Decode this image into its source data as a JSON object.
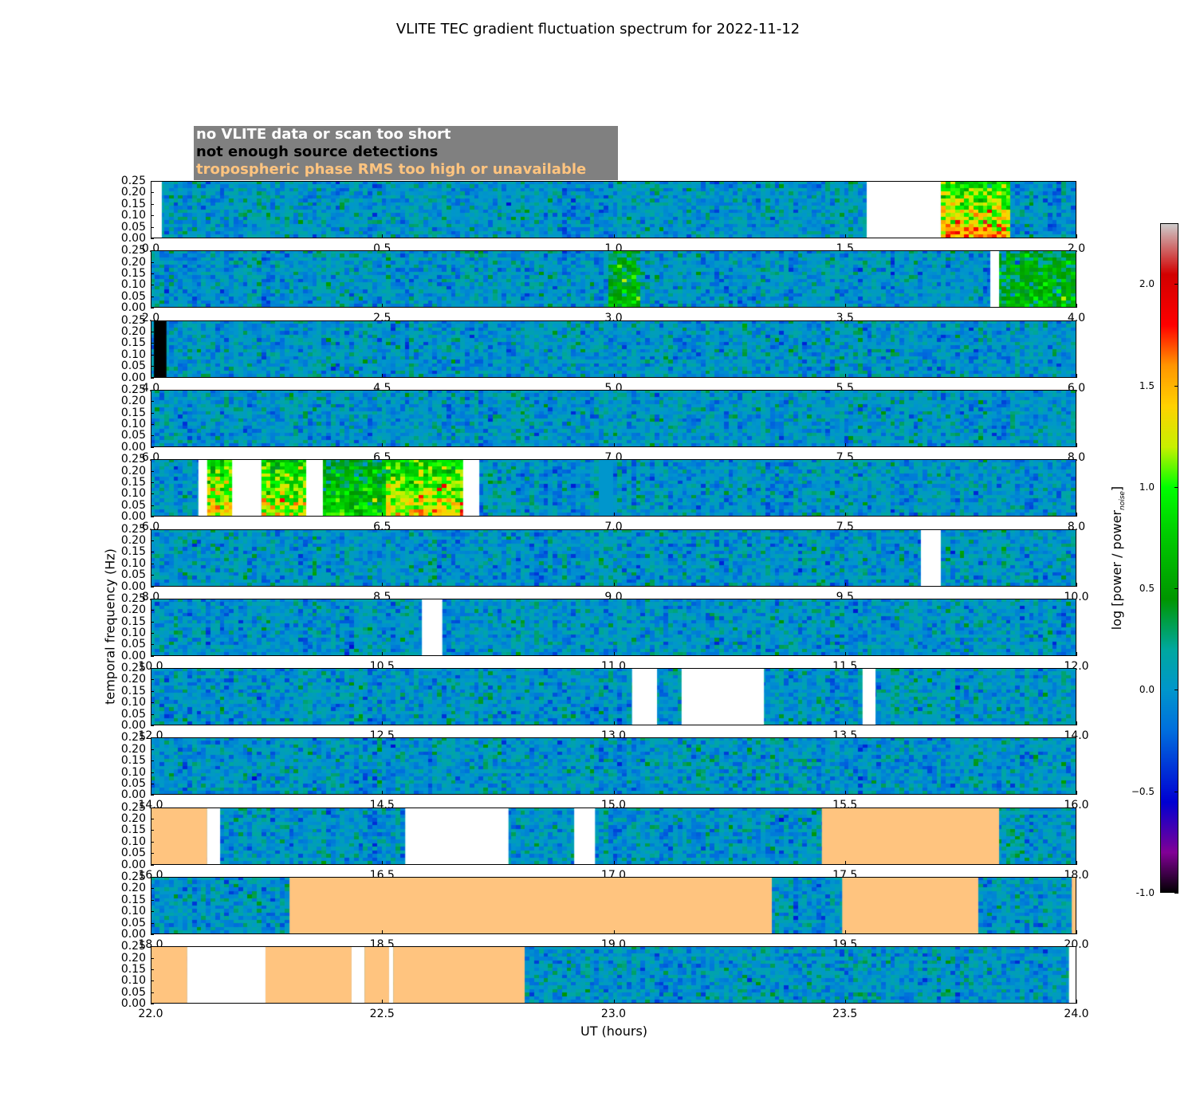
{
  "chart_data": {
    "type": "heatmap",
    "title": "VLITE TEC gradient fluctuation spectrum for 2022-11-12",
    "xlabel": "UT (hours)",
    "ylabel": "temporal frequency (Hz)",
    "colorbar": {
      "label": "log [power / power",
      "label_sub": "noise",
      "label_end": "]",
      "range": [
        -1.0,
        2.3
      ],
      "ticks": [
        "-1.0",
        "−0.5",
        "0.0",
        "0.5",
        "1.0",
        "1.5",
        "2.0"
      ],
      "tick_values": [
        -1.0,
        -0.5,
        0.0,
        0.5,
        1.0,
        1.5,
        2.0
      ],
      "colormap": "nipy_spectral"
    },
    "ylim": [
      0.0,
      0.25
    ],
    "y_ticks": [
      "0.00",
      "0.05",
      "0.10",
      "0.15",
      "0.20",
      "0.25"
    ],
    "legend": {
      "no_data": {
        "text": "no VLITE data or scan too short",
        "color": "#ffffff"
      },
      "few_detections": {
        "text": "not enough source detections",
        "color": "#000000"
      },
      "tropo": {
        "text": "tropospheric phase RMS too high or unavailable",
        "color": "#ffc47f"
      },
      "background": "#808080"
    },
    "panels": [
      {
        "xlim": [
          0,
          2
        ],
        "x_ticks": [
          "0.0",
          "0.5",
          "1.0",
          "1.5",
          "2.0"
        ],
        "segments": [
          {
            "type": "no_data",
            "x": [
              0.0,
              0.024
            ]
          },
          {
            "type": "no_data",
            "x": [
              1.547,
              1.707
            ]
          },
          {
            "type": "enhanced",
            "x": [
              1.707,
              1.859
            ],
            "level": 1.2
          }
        ]
      },
      {
        "xlim": [
          2,
          4
        ],
        "x_ticks": [
          "2.0",
          "2.5",
          "3.0",
          "3.5",
          "4.0"
        ],
        "segments": [
          {
            "type": "enhanced",
            "x": [
              2.99,
              3.06
            ],
            "level": 0.5
          },
          {
            "type": "no_data",
            "x": [
              3.814,
              3.833
            ]
          },
          {
            "type": "enhanced",
            "x": [
              3.833,
              4.0
            ],
            "level": 0.5
          }
        ]
      },
      {
        "xlim": [
          4,
          6
        ],
        "x_ticks": [
          "4.0",
          "4.5",
          "5.0",
          "5.5",
          "6.0"
        ],
        "segments": [
          {
            "type": "few_detections",
            "x": [
              4.007,
              4.034
            ]
          }
        ]
      },
      {
        "xlim": [
          6,
          8
        ],
        "x_ticks": [
          "6.0",
          "6.5",
          "7.0",
          "7.5",
          "8.0"
        ],
        "segments": []
      },
      {
        "xlim": [
          6,
          8
        ],
        "x_ticks": [
          "6.0",
          "6.5",
          "7.0",
          "7.5",
          "8.0"
        ],
        "segments": [
          {
            "type": "no_data",
            "x": [
              6.103,
              6.122
            ]
          },
          {
            "type": "enhanced",
            "x": [
              6.122,
              6.176
            ],
            "level": 1.2
          },
          {
            "type": "no_data",
            "x": [
              6.176,
              6.239
            ]
          },
          {
            "type": "enhanced",
            "x": [
              6.239,
              6.336
            ],
            "level": 1.0
          },
          {
            "type": "no_data",
            "x": [
              6.336,
              6.372
            ]
          },
          {
            "type": "enhanced",
            "x": [
              6.372,
              6.506
            ],
            "level": 0.6
          },
          {
            "type": "enhanced",
            "x": [
              6.506,
              6.675
            ],
            "level": 1.1
          },
          {
            "type": "no_data",
            "x": [
              6.675,
              6.71
            ]
          },
          {
            "type": "flat",
            "x": [
              6.966,
              7.004
            ],
            "level": 0.0
          }
        ]
      },
      {
        "xlim": [
          8,
          10
        ],
        "x_ticks": [
          "8.0",
          "8.5",
          "9.0",
          "9.5",
          "10.0"
        ],
        "segments": [
          {
            "type": "no_data",
            "x": [
              9.664,
              9.707
            ]
          }
        ]
      },
      {
        "xlim": [
          10,
          12
        ],
        "x_ticks": [
          "10.0",
          "10.5",
          "11.0",
          "11.5",
          "12.0"
        ],
        "segments": [
          {
            "type": "no_data",
            "x": [
              10.586,
              10.63
            ]
          }
        ]
      },
      {
        "xlim": [
          12,
          14
        ],
        "x_ticks": [
          "12.0",
          "12.5",
          "13.0",
          "13.5",
          "14.0"
        ],
        "segments": [
          {
            "type": "no_data",
            "x": [
              13.04,
              13.094
            ]
          },
          {
            "type": "no_data",
            "x": [
              13.147,
              13.325
            ]
          },
          {
            "type": "no_data",
            "x": [
              13.538,
              13.566
            ]
          }
        ]
      },
      {
        "xlim": [
          14,
          16
        ],
        "x_ticks": [
          "14.0",
          "14.5",
          "15.0",
          "15.5",
          "16.0"
        ],
        "segments": []
      },
      {
        "xlim": [
          16,
          18
        ],
        "x_ticks": [
          "16.0",
          "16.5",
          "17.0",
          "17.5",
          "18.0"
        ],
        "segments": [
          {
            "type": "tropo",
            "x": [
              16.0,
              16.122
            ]
          },
          {
            "type": "no_data",
            "x": [
              16.122,
              16.15
            ]
          },
          {
            "type": "no_data",
            "x": [
              16.55,
              16.773
            ]
          },
          {
            "type": "no_data",
            "x": [
              16.915,
              16.96
            ]
          },
          {
            "type": "tropo",
            "x": [
              17.45,
              17.833
            ]
          }
        ]
      },
      {
        "xlim": [
          18,
          20
        ],
        "x_ticks": [
          "18.0",
          "18.5",
          "19.0",
          "19.5",
          "20.0"
        ],
        "segments": [
          {
            "type": "tropo",
            "x": [
              18.3,
              19.342
            ]
          },
          {
            "type": "tropo",
            "x": [
              19.494,
              19.788
            ]
          },
          {
            "type": "tropo",
            "x": [
              19.99,
              20.0
            ]
          }
        ]
      },
      {
        "xlim": [
          22,
          24
        ],
        "x_ticks": [
          "22.0",
          "22.5",
          "23.0",
          "23.5",
          "24.0"
        ],
        "segments": [
          {
            "type": "tropo",
            "x": [
              22.0,
              22.079
            ]
          },
          {
            "type": "no_data",
            "x": [
              22.079,
              22.248
            ]
          },
          {
            "type": "tropo",
            "x": [
              22.248,
              22.434
            ]
          },
          {
            "type": "no_data",
            "x": [
              22.434,
              22.462
            ]
          },
          {
            "type": "tropo",
            "x": [
              22.462,
              22.515
            ]
          },
          {
            "type": "no_data",
            "x": [
              22.515,
              22.524
            ]
          },
          {
            "type": "tropo",
            "x": [
              22.524,
              22.808
            ]
          },
          {
            "type": "no_data",
            "x": [
              23.984,
              24.0
            ]
          }
        ]
      }
    ]
  }
}
